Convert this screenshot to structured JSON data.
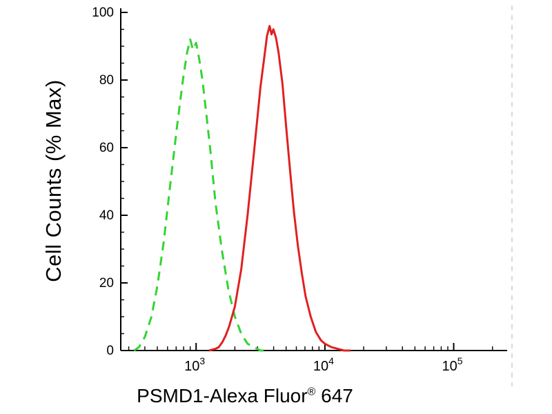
{
  "chart_data": {
    "type": "line",
    "subtype": "flow-cytometry-histogram",
    "title": "",
    "ylabel": "Cell Counts (% Max)",
    "xlabel_main": "PSMD1-Alexa Fluor",
    "xlabel_sup": "®",
    "xlabel_suffix": " 647",
    "background": "#ffffff",
    "axis_color": "#000000",
    "grid": "off",
    "legend": "none",
    "x_axis": {
      "scale": "log",
      "min": 260,
      "max": 260000,
      "major_ticks": [
        {
          "value": 1000,
          "base": "10",
          "exp": "3"
        },
        {
          "value": 10000,
          "base": "10",
          "exp": "4"
        },
        {
          "value": 100000,
          "base": "10",
          "exp": "5"
        }
      ]
    },
    "y_axis": {
      "min": 0,
      "max": 100,
      "major_ticks": [
        0,
        20,
        40,
        60,
        80,
        100
      ],
      "minor_step": 5
    },
    "series": [
      {
        "name": "green-dashed-curve",
        "style": "dashed",
        "color": "#33d433",
        "stroke_width": 3,
        "peak_x": 950,
        "peak_y": 92,
        "points": [
          [
            330,
            0
          ],
          [
            360,
            1
          ],
          [
            400,
            4
          ],
          [
            450,
            10
          ],
          [
            500,
            19
          ],
          [
            560,
            32
          ],
          [
            630,
            49
          ],
          [
            710,
            66
          ],
          [
            790,
            80
          ],
          [
            850,
            88
          ],
          [
            900,
            92
          ],
          [
            945,
            89
          ],
          [
            1000,
            91
          ],
          [
            1060,
            86
          ],
          [
            1120,
            80
          ],
          [
            1200,
            70
          ],
          [
            1300,
            58
          ],
          [
            1410,
            44
          ],
          [
            1580,
            30
          ],
          [
            1780,
            18
          ],
          [
            2000,
            10
          ],
          [
            2240,
            5
          ],
          [
            2510,
            2
          ],
          [
            2820,
            1
          ],
          [
            3160,
            0
          ],
          [
            3500,
            0
          ]
        ]
      },
      {
        "name": "red-solid-curve",
        "style": "solid",
        "color": "#e02020",
        "stroke_width": 3,
        "peak_x": 3720,
        "peak_y": 96,
        "points": [
          [
            1260,
            0
          ],
          [
            1410,
            0.5
          ],
          [
            1500,
            1
          ],
          [
            1600,
            2.5
          ],
          [
            1700,
            4.5
          ],
          [
            1800,
            7
          ],
          [
            2000,
            13
          ],
          [
            2240,
            24
          ],
          [
            2510,
            40
          ],
          [
            2820,
            59
          ],
          [
            3160,
            78
          ],
          [
            3390,
            87
          ],
          [
            3550,
            93
          ],
          [
            3720,
            96
          ],
          [
            3850,
            93.5
          ],
          [
            3980,
            95
          ],
          [
            4170,
            92.5
          ],
          [
            4370,
            88
          ],
          [
            4680,
            79
          ],
          [
            5010,
            66
          ],
          [
            5370,
            53
          ],
          [
            5750,
            41
          ],
          [
            6170,
            31
          ],
          [
            6610,
            23
          ],
          [
            7080,
            16
          ],
          [
            7760,
            10
          ],
          [
            8510,
            5.5
          ],
          [
            9330,
            3
          ],
          [
            10000,
            2
          ],
          [
            11200,
            1
          ],
          [
            12600,
            0.5
          ],
          [
            14100,
            0
          ],
          [
            15800,
            0
          ]
        ]
      }
    ]
  }
}
